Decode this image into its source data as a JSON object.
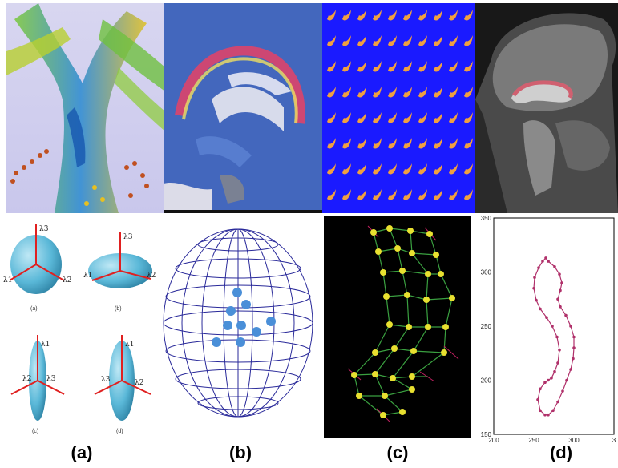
{
  "captions": {
    "a": "(a)",
    "b": "(b)",
    "c": "(c)",
    "d": "(d)"
  },
  "ellipsoid_labels": {
    "a": "(a)",
    "b": "(b)",
    "c": "(c)",
    "d": "(d)",
    "lambda1": "λ1",
    "lambda2": "λ2",
    "lambda3": "λ3"
  },
  "tile_row_count": 8,
  "tile_col_count": 10,
  "colors": {
    "tile_bg": "#1a1aff",
    "tile_glyph": "#f0a040",
    "arrow_red": "#e02020",
    "ellipsoid": "#5ab8d8",
    "sphere_line": "#2a2a9a",
    "dot": "#4a8fd8",
    "contour": "#b0306a",
    "grid_node": "#e8e030"
  },
  "chart_data": {
    "type": "line",
    "title": "",
    "xlabel": "",
    "ylabel": "",
    "xlim": [
      200,
      350
    ],
    "ylim": [
      150,
      350
    ],
    "xticks": [
      "200",
      "250",
      "300",
      "3"
    ],
    "yticks": [
      "350",
      "300",
      "250",
      "200",
      "150"
    ],
    "series": [
      {
        "x": [
          268,
          276,
          282,
          285,
          283,
          280,
          283,
          290,
          296,
          300,
          300,
          299,
          296,
          291,
          286,
          280,
          274,
          268,
          264,
          258,
          255,
          258,
          264,
          268,
          272,
          276,
          280,
          282,
          279,
          273,
          266,
          258,
          253,
          250,
          251,
          256,
          261,
          265,
          268
        ],
        "y": [
          310,
          305,
          298,
          290,
          283,
          275,
          268,
          260,
          250,
          240,
          230,
          220,
          210,
          200,
          190,
          180,
          172,
          168,
          168,
          172,
          182,
          192,
          198,
          200,
          202,
          208,
          216,
          228,
          240,
          250,
          258,
          266,
          274,
          285,
          295,
          304,
          310,
          313,
          310
        ]
      }
    ]
  }
}
